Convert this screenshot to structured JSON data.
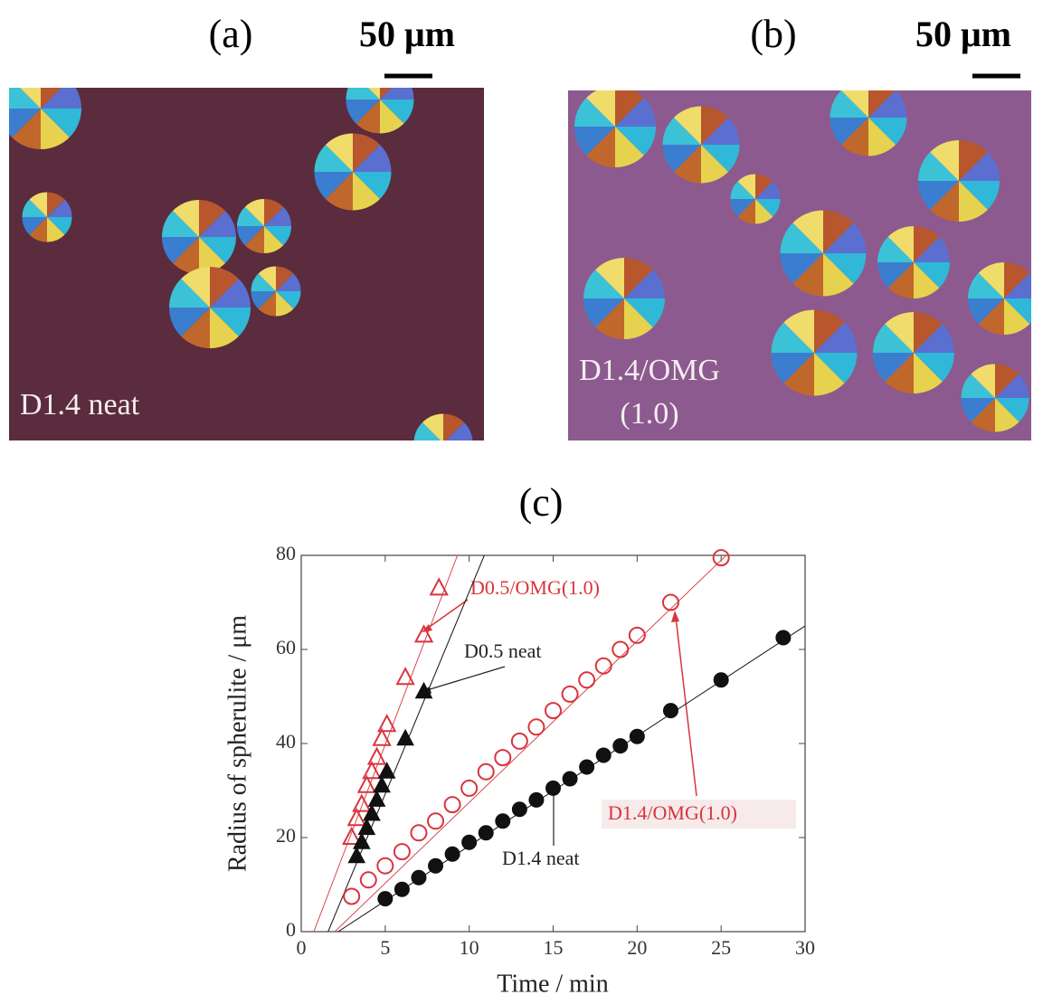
{
  "panel_a": {
    "label": "(a)",
    "scale": "50 μm",
    "caption": "D1.4 neat"
  },
  "panel_b": {
    "label": "(b)",
    "scale": "50 μm",
    "caption": [
      "D1.4/OMG",
      "(1.0)"
    ]
  },
  "panel_c": {
    "label": "(c)"
  },
  "chart_data": {
    "type": "scatter",
    "x_label": "Time / min",
    "y_label": "Radius of spherulite / μm",
    "xlim": [
      0,
      30
    ],
    "ylim": [
      0,
      80
    ],
    "xticks": [
      0,
      5,
      10,
      15,
      20,
      25,
      30
    ],
    "yticks": [
      0,
      20,
      40,
      60,
      80
    ],
    "annotations": [
      "D0.5/OMG(1.0)",
      "D0.5 neat",
      "D1.4/OMG(1.0)",
      "D1.4 neat"
    ],
    "series": [
      {
        "marker": "triangle",
        "filled": false,
        "color": "#d8353d",
        "x": [
          3.0,
          3.3,
          3.6,
          3.9,
          4.2,
          4.5,
          4.8,
          5.1,
          6.2,
          7.3,
          8.2
        ],
        "values": [
          20,
          24,
          27,
          31,
          34,
          37,
          41,
          44,
          54,
          63,
          73
        ],
        "fit_x": [
          0.75,
          9.3
        ],
        "fit_y": [
          0,
          80
        ]
      },
      {
        "marker": "triangle",
        "filled": true,
        "color": "#111111",
        "x": [
          3.3,
          3.6,
          3.9,
          4.2,
          4.5,
          4.8,
          5.1,
          6.2,
          7.3
        ],
        "values": [
          16,
          19,
          22,
          25,
          28,
          31,
          34,
          41,
          51
        ],
        "fit_x": [
          1.6,
          10.9
        ],
        "fit_y": [
          0,
          80
        ]
      },
      {
        "marker": "circle",
        "filled": false,
        "color": "#d8353d",
        "x": [
          3,
          4,
          5,
          6,
          7,
          8,
          9,
          10,
          11,
          12,
          13,
          14,
          15,
          16,
          17,
          18,
          19,
          20,
          22,
          25
        ],
        "values": [
          7.5,
          11,
          14,
          17,
          21,
          23.5,
          27,
          30.5,
          34,
          37,
          40.5,
          43.5,
          47,
          50.5,
          53.5,
          56.5,
          60,
          63,
          70,
          79.5
        ],
        "fit_x": [
          2.0,
          25.3
        ],
        "fit_y": [
          0,
          80
        ]
      },
      {
        "marker": "circle",
        "filled": true,
        "color": "#111111",
        "x": [
          5,
          6,
          7,
          8,
          9,
          10,
          11,
          12,
          13,
          14,
          15,
          16,
          17,
          18,
          19,
          20,
          22,
          25,
          28.7
        ],
        "values": [
          7,
          9,
          11.5,
          14,
          16.5,
          19,
          21,
          23.5,
          26,
          28,
          30.5,
          32.5,
          35,
          37.5,
          39.5,
          41.5,
          47,
          53.5,
          62.5
        ],
        "fit_x": [
          2.2,
          30
        ],
        "fit_y": [
          0,
          65
        ]
      }
    ]
  }
}
